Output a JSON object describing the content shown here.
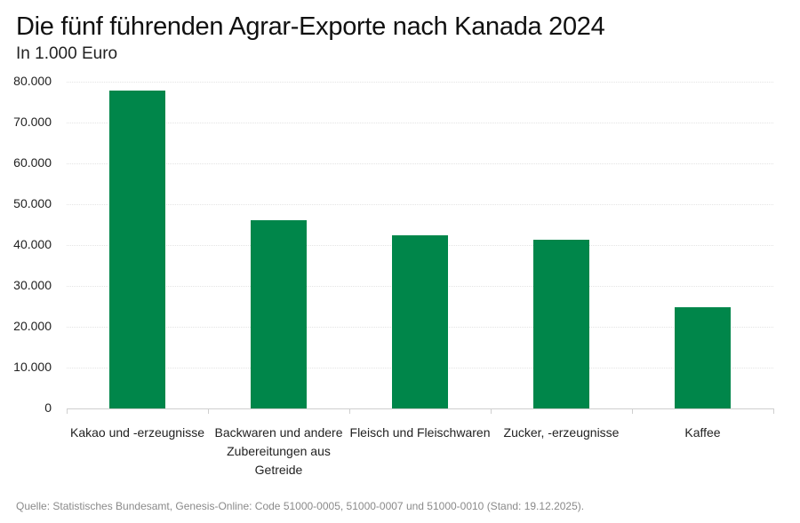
{
  "header": {
    "title": "Die fünf führenden Agrar-Exporte nach Kanada 2024",
    "subtitle": "In 1.000 Euro"
  },
  "footer": {
    "source": "Quelle: Statistisches Bundesamt, Genesis-Online: Code 51000-0005, 51000-0007 und 51000-0010 (Stand: 19.12.2025)."
  },
  "colors": {
    "bar": "#00864a"
  },
  "y_ticks": [
    "0",
    "10.000",
    "20.000",
    "30.000",
    "40.000",
    "50.000",
    "60.000",
    "70.000",
    "80.000"
  ],
  "chart_data": {
    "type": "bar",
    "title": "Die fünf führenden Agrar-Exporte nach Kanada 2024",
    "subtitle": "In 1.000 Euro",
    "xlabel": "",
    "ylabel": "In 1.000 Euro",
    "categories": [
      "Kakao und -erzeugnisse",
      "Backwaren und andere Zubereitungen aus Getreide",
      "Fleisch und Fleischwaren",
      "Zucker, -erzeugnisse",
      "Kaffee"
    ],
    "category_label_lines": [
      [
        "Kakao und -erzeugnisse"
      ],
      [
        "Backwaren und andere",
        "Zubereitungen aus",
        "Getreide"
      ],
      [
        "Fleisch und Fleischwaren"
      ],
      [
        "Zucker, -erzeugnisse"
      ],
      [
        "Kaffee"
      ]
    ],
    "values": [
      77900,
      46100,
      42400,
      41200,
      24800
    ],
    "ylim": [
      0,
      80000
    ],
    "yticks": [
      0,
      10000,
      20000,
      30000,
      40000,
      50000,
      60000,
      70000,
      80000
    ],
    "grid": true,
    "legend": null,
    "source": "Quelle: Statistisches Bundesamt, Genesis-Online: Code 51000-0005, 51000-0007 und 51000-0010 (Stand: 19.12.2025)."
  }
}
